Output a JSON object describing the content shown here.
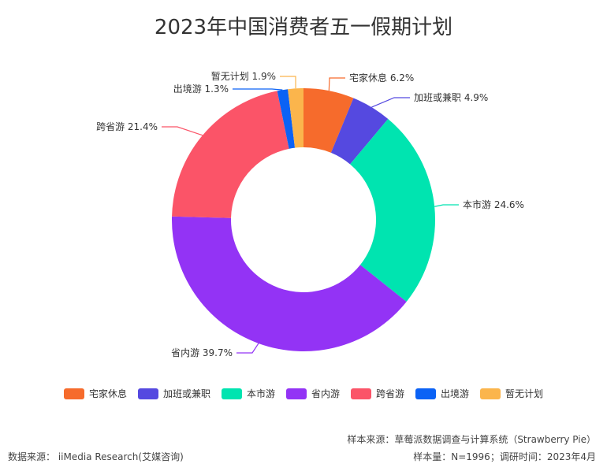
{
  "chart_data": {
    "type": "pie",
    "title": "2023年中国消费者五一假期计划",
    "categories": [
      "宅家休息",
      "加班或兼职",
      "本市游",
      "省内游",
      "跨省游",
      "出境游",
      "暂无计划"
    ],
    "values": [
      6.2,
      4.9,
      24.6,
      39.7,
      21.4,
      1.3,
      1.9
    ],
    "labels": [
      "宅家休息 6.2%",
      "加班或兼职 4.9%",
      "本市游 24.6%",
      "省内游 39.7%",
      "跨省游 21.4%",
      "出境游 1.3%",
      "暂无计划 1.9%"
    ],
    "colors": [
      "#f66b2c",
      "#5549e0",
      "#00e4b0",
      "#9333f5",
      "#fb5468",
      "#0b62f5",
      "#fbb54c"
    ],
    "legend_position": "bottom"
  },
  "footer": {
    "source": "数据来源： iiMedia Research(艾媒咨询)",
    "sample_source": "样本来源：草莓派数据调查与计算系统（Strawberry Pie）",
    "sample_size": "样本量：N=1996；调研时间：2023年4月"
  }
}
